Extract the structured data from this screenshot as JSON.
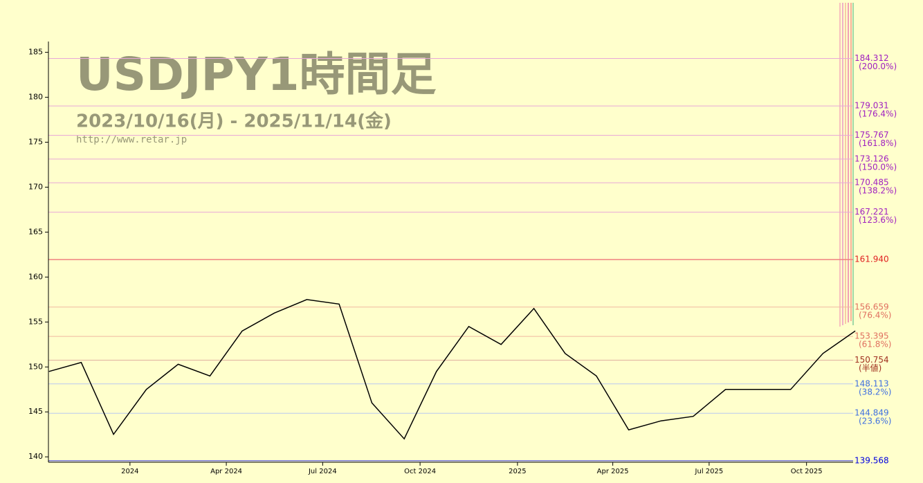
{
  "chart_data": {
    "type": "line",
    "title": "USDJPY1時間足",
    "subtitle": "2023/10/16(月) - 2025/11/14(金)",
    "url": "http://www.retar.jp",
    "x": [
      "2023-10",
      "2023-11",
      "2023-12",
      "2024-01",
      "2024-02",
      "2024-03",
      "2024-04",
      "2024-05",
      "2024-06",
      "2024-07",
      "2024-08",
      "2024-09",
      "2024-10",
      "2024-11",
      "2024-12",
      "2025-01",
      "2025-02",
      "2025-03",
      "2025-04",
      "2025-05",
      "2025-06",
      "2025-07",
      "2025-08",
      "2025-09",
      "2025-10",
      "2025-11"
    ],
    "series": [
      {
        "name": "USDJPY",
        "color": "#000000",
        "values": [
          149.5,
          150.5,
          142.5,
          147.5,
          150.3,
          149,
          154,
          156,
          157.5,
          157,
          146,
          142,
          149.5,
          154.5,
          152.5,
          156.5,
          151.5,
          149,
          143,
          144,
          144.5,
          147.5,
          147.5,
          147.5,
          151.5,
          154
        ]
      }
    ],
    "xlim": [
      "2023-10-16",
      "2025-11-14"
    ],
    "xticks": [
      {
        "value": "2024-01",
        "label": "2024"
      },
      {
        "value": "2024-04",
        "label": "Apr 2024"
      },
      {
        "value": "2024-07",
        "label": "Jul 2024"
      },
      {
        "value": "2024-10",
        "label": "Oct 2024"
      },
      {
        "value": "2025-01",
        "label": "2025"
      },
      {
        "value": "2025-04",
        "label": "Apr 2025"
      },
      {
        "value": "2025-07",
        "label": "Jul 2025"
      },
      {
        "value": "2025-10",
        "label": "Oct 2025"
      }
    ],
    "ylim": [
      139.4,
      186.2
    ],
    "yticks": [
      140,
      145,
      150,
      155,
      160,
      165,
      170,
      175,
      180,
      185
    ],
    "levels": [
      {
        "value": 184.312,
        "label": "184.312",
        "ratio": "(200.0%)",
        "color": "#a020c0",
        "line": "#e8a8d8"
      },
      {
        "value": 179.031,
        "label": "179.031",
        "ratio": "(176.4%)",
        "color": "#a020c0",
        "line": "#e8a8d8"
      },
      {
        "value": 175.767,
        "label": "175.767",
        "ratio": "(161.8%)",
        "color": "#a020c0",
        "line": "#e8a8d8"
      },
      {
        "value": 173.126,
        "label": "173.126",
        "ratio": "(150.0%)",
        "color": "#a020c0",
        "line": "#e8a8d8"
      },
      {
        "value": 170.485,
        "label": "170.485",
        "ratio": "(138.2%)",
        "color": "#a020c0",
        "line": "#e8a8d8"
      },
      {
        "value": 167.221,
        "label": "167.221",
        "ratio": "(123.6%)",
        "color": "#a020c0",
        "line": "#e8a8d8"
      },
      {
        "value": 161.94,
        "label": "161.940",
        "color": "#e02020",
        "line": "#f08080"
      },
      {
        "value": 156.659,
        "label": "156.659",
        "ratio": "(76.4%)",
        "color": "#e07060",
        "line": "#f0b8a0"
      },
      {
        "value": 153.395,
        "label": "153.395",
        "ratio": "(61.8%)",
        "color": "#e07060",
        "line": "#f0b8a0"
      },
      {
        "value": 150.754,
        "label": "150.754",
        "ratio": "(半値)",
        "color": "#a03020",
        "line": "#e0b0a0"
      },
      {
        "value": 148.113,
        "label": "148.113",
        "ratio": "(38.2%)",
        "color": "#4070e0",
        "line": "#b8c8f0"
      },
      {
        "value": 144.849,
        "label": "144.849",
        "ratio": "(23.6%)",
        "color": "#4070e0",
        "line": "#b8c8f0"
      },
      {
        "value": 139.568,
        "label": "139.568",
        "color": "#0000e0",
        "line": "#3030e0"
      }
    ]
  }
}
